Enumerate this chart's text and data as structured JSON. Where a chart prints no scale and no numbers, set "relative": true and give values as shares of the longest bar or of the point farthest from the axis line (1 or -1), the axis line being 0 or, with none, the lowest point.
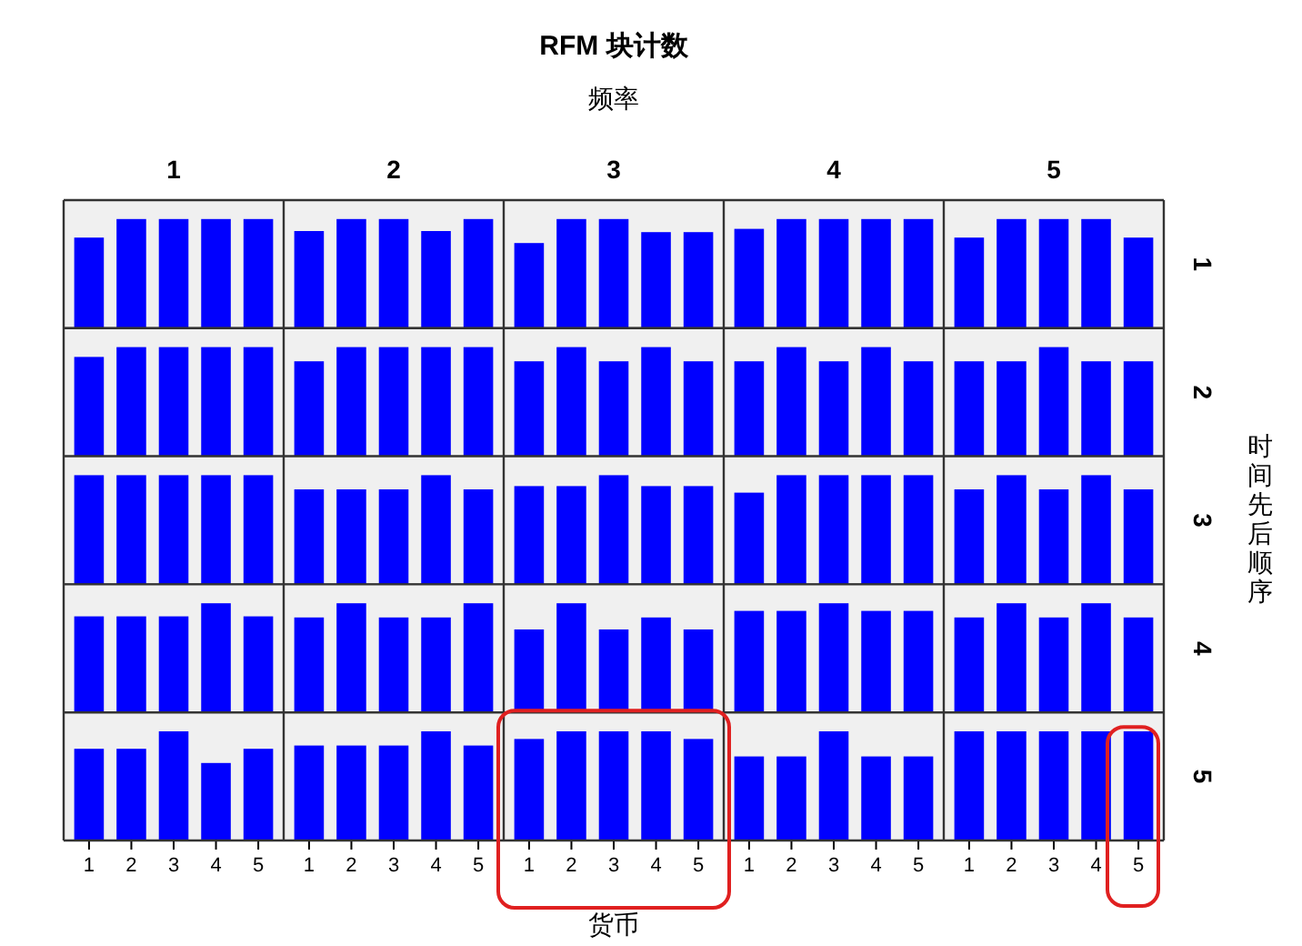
{
  "chart_data": [
    {
      "type": "bar",
      "title": "1",
      "categories": [
        null,
        null,
        null,
        null,
        null
      ],
      "values": [
        0.83,
        1,
        1,
        1,
        1
      ],
      "color": "#0000ff",
      "relative": true
    },
    {
      "type": "bar",
      "title": "2",
      "categories": [
        null,
        null,
        null,
        null,
        null
      ],
      "values": [
        0.89,
        1,
        1,
        0.89,
        1
      ],
      "color": "#0000ff",
      "relative": true
    },
    {
      "type": "bar",
      "title": "3",
      "categories": [
        null,
        null,
        null,
        null,
        null
      ],
      "values": [
        0.78,
        1,
        1,
        0.88,
        0.88
      ],
      "color": "#0000ff",
      "relative": true
    },
    {
      "type": "bar",
      "title": "4",
      "categories": [
        null,
        null,
        null,
        null,
        null
      ],
      "values": [
        0.91,
        1,
        1,
        1,
        1
      ],
      "color": "#0000ff",
      "relative": true
    },
    {
      "type": "bar",
      "title": "5",
      "y2label": "1",
      "categories": [
        null,
        null,
        null,
        null,
        null
      ],
      "values": [
        0.83,
        1,
        1,
        1,
        0.83
      ],
      "color": "#0000ff",
      "relative": true
    },
    {
      "type": "bar",
      "categories": [
        null,
        null,
        null,
        null,
        null
      ],
      "values": [
        0.91,
        1,
        1,
        1,
        1
      ],
      "color": "#0000ff",
      "relative": true
    },
    {
      "type": "bar",
      "categories": [
        null,
        null,
        null,
        null,
        null
      ],
      "values": [
        0.87,
        1,
        1,
        1,
        1
      ],
      "color": "#0000ff",
      "relative": true
    },
    {
      "type": "bar",
      "categories": [
        null,
        null,
        null,
        null,
        null
      ],
      "values": [
        0.87,
        1,
        0.87,
        1,
        0.87
      ],
      "color": "#0000ff",
      "relative": true
    },
    {
      "type": "bar",
      "categories": [
        null,
        null,
        null,
        null,
        null
      ],
      "values": [
        0.87,
        1,
        0.87,
        1,
        0.87
      ],
      "color": "#0000ff",
      "relative": true
    },
    {
      "type": "bar",
      "y2label": "2",
      "categories": [
        null,
        null,
        null,
        null,
        null
      ],
      "values": [
        0.87,
        0.87,
        1,
        0.87,
        0.87
      ],
      "color": "#0000ff",
      "relative": true
    },
    {
      "type": "bar",
      "categories": [
        null,
        null,
        null,
        null,
        null
      ],
      "values": [
        1,
        1,
        1,
        1,
        1
      ],
      "color": "#0000ff",
      "relative": true
    },
    {
      "type": "bar",
      "categories": [
        null,
        null,
        null,
        null,
        null
      ],
      "values": [
        0.87,
        0.87,
        0.87,
        1,
        0.87
      ],
      "color": "#0000ff",
      "relative": true
    },
    {
      "type": "bar",
      "categories": [
        null,
        null,
        null,
        null,
        null
      ],
      "values": [
        0.9,
        0.9,
        1,
        0.9,
        0.9
      ],
      "color": "#0000ff",
      "relative": true
    },
    {
      "type": "bar",
      "categories": [
        null,
        null,
        null,
        null,
        null
      ],
      "values": [
        0.84,
        1,
        1,
        1,
        1
      ],
      "color": "#0000ff",
      "relative": true
    },
    {
      "type": "bar",
      "y2label": "3",
      "categories": [
        null,
        null,
        null,
        null,
        null
      ],
      "values": [
        0.87,
        1,
        0.87,
        1,
        0.87
      ],
      "color": "#0000ff",
      "relative": true
    },
    {
      "type": "bar",
      "categories": [
        null,
        null,
        null,
        null,
        null
      ],
      "values": [
        0.88,
        0.88,
        0.88,
        1,
        0.88
      ],
      "color": "#0000ff",
      "relative": true
    },
    {
      "type": "bar",
      "categories": [
        null,
        null,
        null,
        null,
        null
      ],
      "values": [
        0.87,
        1,
        0.87,
        0.87,
        1
      ],
      "color": "#0000ff",
      "relative": true
    },
    {
      "type": "bar",
      "categories": [
        null,
        null,
        null,
        null,
        null
      ],
      "values": [
        0.76,
        1,
        0.76,
        0.87,
        0.76
      ],
      "color": "#0000ff",
      "relative": true
    },
    {
      "type": "bar",
      "categories": [
        null,
        null,
        null,
        null,
        null
      ],
      "values": [
        0.93,
        0.93,
        1,
        0.93,
        0.93
      ],
      "color": "#0000ff",
      "relative": true
    },
    {
      "type": "bar",
      "y2label": "4",
      "categories": [
        null,
        null,
        null,
        null,
        null
      ],
      "values": [
        0.87,
        1,
        0.87,
        1,
        0.87
      ],
      "color": "#0000ff",
      "relative": true
    },
    {
      "type": "bar",
      "categories": [
        "1",
        "2",
        "3",
        "4",
        "5"
      ],
      "values": [
        0.84,
        0.84,
        1,
        0.71,
        0.84
      ],
      "color": "#0000ff",
      "relative": true
    },
    {
      "type": "bar",
      "categories": [
        "1",
        "2",
        "3",
        "4",
        "5"
      ],
      "values": [
        0.87,
        0.87,
        0.87,
        1,
        0.87
      ],
      "color": "#0000ff",
      "relative": true
    },
    {
      "type": "bar",
      "categories": [
        "1",
        "2",
        "3",
        "4",
        "5"
      ],
      "values": [
        0.93,
        1,
        1,
        1,
        0.93
      ],
      "color": "#0000ff",
      "relative": true
    },
    {
      "type": "bar",
      "categories": [
        "1",
        "2",
        "3",
        "4",
        "5"
      ],
      "values": [
        0.77,
        0.77,
        1,
        0.77,
        0.77
      ],
      "color": "#0000ff",
      "relative": true
    },
    {
      "type": "bar",
      "y2label": "5",
      "categories": [
        "1",
        "2",
        "3",
        "4",
        "5"
      ],
      "values": [
        1,
        1,
        1,
        1,
        1
      ],
      "color": "#0000ff",
      "relative": true
    },
    {
      "type": "other",
      "title": "RFM 块计数",
      "subtitle": "频率",
      "xlabel": "货币",
      "ylabel": "时间先后顺序"
    }
  ]
}
